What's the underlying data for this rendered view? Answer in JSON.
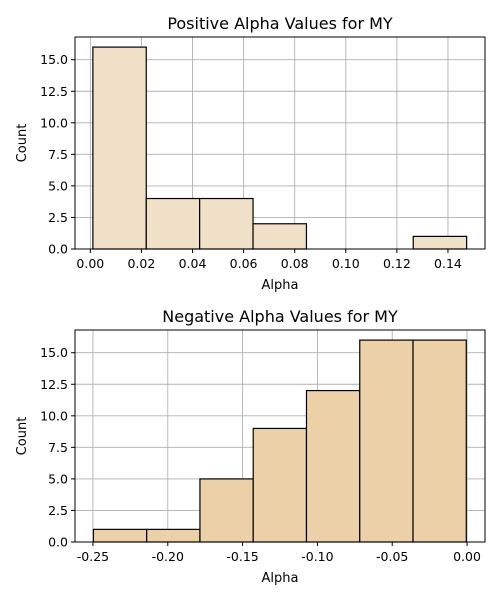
{
  "chart_data": [
    {
      "type": "bar",
      "title": "Positive Alpha Values for MY",
      "xlabel": "Alpha",
      "ylabel": "Count",
      "bar_color": "#f0e0c8",
      "bins": [
        {
          "x0": 0.001,
          "x1": 0.0219,
          "count": 16
        },
        {
          "x0": 0.0219,
          "x1": 0.0428,
          "count": 4
        },
        {
          "x0": 0.0428,
          "x1": 0.0637,
          "count": 4
        },
        {
          "x0": 0.0637,
          "x1": 0.0846,
          "count": 2
        },
        {
          "x0": 0.0846,
          "x1": 0.1055,
          "count": 0
        },
        {
          "x0": 0.1055,
          "x1": 0.1264,
          "count": 0
        },
        {
          "x0": 0.1264,
          "x1": 0.1473,
          "count": 1
        }
      ],
      "xlim": [
        -0.006,
        0.1545
      ],
      "ylim": [
        0,
        16.8
      ],
      "xticks": [
        0.0,
        0.02,
        0.04,
        0.06,
        0.08,
        0.1,
        0.12,
        0.14
      ],
      "xtick_labels": [
        "0.00",
        "0.02",
        "0.04",
        "0.06",
        "0.08",
        "0.10",
        "0.12",
        "0.14"
      ],
      "yticks": [
        0,
        2.5,
        5,
        7.5,
        10,
        12.5,
        15
      ],
      "ytick_labels": [
        "0.0",
        "2.5",
        "5.0",
        "7.5",
        "10.0",
        "12.5",
        "15.0"
      ],
      "grid": true
    },
    {
      "type": "bar",
      "title": "Negative Alpha Values for MY",
      "xlabel": "Alpha",
      "ylabel": "Count",
      "bar_color": "#ecd0a8",
      "bins": [
        {
          "x0": -0.2497,
          "x1": -0.2141,
          "count": 1
        },
        {
          "x0": -0.2141,
          "x1": -0.1785,
          "count": 1
        },
        {
          "x0": -0.1785,
          "x1": -0.1429,
          "count": 5
        },
        {
          "x0": -0.1429,
          "x1": -0.1073,
          "count": 9
        },
        {
          "x0": -0.1073,
          "x1": -0.0717,
          "count": 12
        },
        {
          "x0": -0.0717,
          "x1": -0.0361,
          "count": 16
        },
        {
          "x0": -0.0361,
          "x1": -0.0005,
          "count": 16
        }
      ],
      "xlim": [
        -0.262,
        0.012
      ],
      "ylim": [
        0,
        16.8
      ],
      "xticks": [
        -0.25,
        -0.2,
        -0.15,
        -0.1,
        -0.05,
        0.0
      ],
      "xtick_labels": [
        "-0.25",
        "-0.20",
        "-0.15",
        "-0.10",
        "-0.05",
        "0.00"
      ],
      "yticks": [
        0,
        2.5,
        5,
        7.5,
        10,
        12.5,
        15
      ],
      "ytick_labels": [
        "0.0",
        "2.5",
        "5.0",
        "7.5",
        "10.0",
        "12.5",
        "15.0"
      ],
      "grid": true
    }
  ]
}
